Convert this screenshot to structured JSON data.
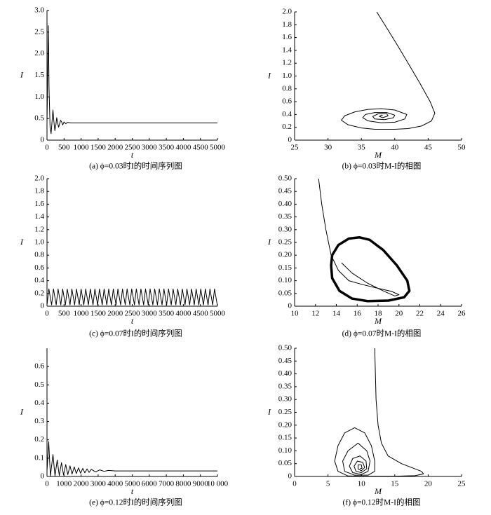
{
  "chart_data": [
    {
      "type": "line",
      "caption": "(a) ϕ=0.03时I的时间序列图",
      "xlabel": "t",
      "ylabel": "I",
      "xlim": [
        0,
        5000
      ],
      "xticks": [
        0,
        500,
        1000,
        1500,
        2000,
        2500,
        3000,
        3500,
        4000,
        4500,
        5000
      ],
      "ylim": [
        0,
        3
      ],
      "yticks": [
        0,
        0.5,
        {
          "value": 1,
          "label": "1.0"
        },
        1.5,
        {
          "value": 2,
          "label": "2.0"
        },
        2.5,
        {
          "value": 3,
          "label": "3.0"
        }
      ],
      "series": [
        {
          "color": "#000000",
          "x": [
            0,
            20,
            40,
            60,
            90,
            120,
            150,
            175,
            200,
            230,
            260,
            285,
            310,
            340,
            370,
            400,
            430,
            460,
            500,
            550,
            600,
            700,
            800,
            5000
          ],
          "values": [
            0.4,
            1.5,
            2.65,
            1.2,
            0.3,
            0.15,
            0.45,
            0.7,
            0.45,
            0.22,
            0.35,
            0.52,
            0.42,
            0.3,
            0.38,
            0.46,
            0.42,
            0.35,
            0.42,
            0.38,
            0.41,
            0.4,
            0.4,
            0.4
          ]
        }
      ]
    },
    {
      "type": "line",
      "caption": "(b) ϕ=0.03时M-I的相图",
      "xlabel": "M",
      "ylabel": "I",
      "xlim": [
        25,
        50
      ],
      "xticks": [
        25,
        30,
        35,
        40,
        45,
        50
      ],
      "ylim": [
        0,
        2
      ],
      "yticks": [
        0,
        0.2,
        0.4,
        0.6,
        0.8,
        {
          "value": 1,
          "label": "1.0"
        },
        1.2,
        1.4,
        1.6,
        1.8,
        {
          "value": 2,
          "label": "2.0"
        }
      ],
      "series": [
        {
          "color": "#000000",
          "x": [
            37.3,
            38.8,
            40.4,
            42,
            43.7,
            45.3,
            46,
            45.5,
            44,
            42,
            40,
            37,
            35,
            33,
            32,
            32.5,
            34,
            36,
            38,
            40,
            41.8,
            41.5,
            40,
            38,
            36,
            35.2,
            35.6,
            37,
            38.8,
            40,
            39.8,
            38.5,
            37,
            36.7,
            37.5,
            38.8,
            39,
            38.2,
            37.7,
            38,
            38.2
          ],
          "values": [
            2.0,
            1.75,
            1.48,
            1.2,
            0.9,
            0.6,
            0.42,
            0.3,
            0.22,
            0.18,
            0.17,
            0.17,
            0.19,
            0.24,
            0.31,
            0.38,
            0.44,
            0.48,
            0.49,
            0.47,
            0.4,
            0.33,
            0.28,
            0.27,
            0.3,
            0.35,
            0.4,
            0.43,
            0.43,
            0.39,
            0.35,
            0.32,
            0.33,
            0.37,
            0.41,
            0.41,
            0.38,
            0.35,
            0.37,
            0.39,
            0.38
          ]
        }
      ]
    },
    {
      "type": "line",
      "caption": "(c) ϕ=0.07时I的时间序列图",
      "xlabel": "t",
      "ylabel": "I",
      "xlim": [
        0,
        5000
      ],
      "xticks": [
        0,
        500,
        1000,
        1500,
        2000,
        2500,
        3000,
        3500,
        4000,
        4500,
        5000
      ],
      "ylim": [
        0,
        2
      ],
      "yticks": [
        0,
        0.2,
        0.4,
        0.6,
        0.8,
        {
          "value": 1,
          "label": "1.0"
        },
        1.2,
        1.4,
        1.6,
        1.8,
        {
          "value": 2,
          "label": "2.0"
        }
      ],
      "series": [
        {
          "color": "#000000",
          "x": [
            0,
            55,
            135,
            190,
            270,
            325,
            405,
            460,
            540,
            595,
            675,
            730,
            810,
            865,
            945,
            1000,
            1080,
            1135,
            1215,
            1270,
            1350,
            1405,
            1485,
            1540,
            1620,
            1675,
            1755,
            1810,
            1890,
            1945,
            2025,
            2080,
            2160,
            2215,
            2295,
            2350,
            2430,
            2485,
            2565,
            2620,
            2700,
            2755,
            2835,
            2890,
            2970,
            3025,
            3105,
            3160,
            3240,
            3295,
            3375,
            3430,
            3510,
            3565,
            3645,
            3700,
            3780,
            3835,
            3915,
            3970,
            4050,
            4105,
            4185,
            4240,
            4320,
            4375,
            4455,
            4510,
            4590,
            4645,
            4725,
            4780,
            4860,
            4915,
            4995
          ],
          "values": [
            0.02,
            0.27,
            0.02,
            0.27,
            0.02,
            0.27,
            0.02,
            0.27,
            0.02,
            0.27,
            0.02,
            0.27,
            0.02,
            0.27,
            0.02,
            0.27,
            0.02,
            0.27,
            0.02,
            0.27,
            0.02,
            0.27,
            0.02,
            0.27,
            0.02,
            0.27,
            0.02,
            0.27,
            0.02,
            0.27,
            0.02,
            0.27,
            0.02,
            0.27,
            0.02,
            0.27,
            0.02,
            0.27,
            0.02,
            0.27,
            0.02,
            0.27,
            0.02,
            0.27,
            0.02,
            0.27,
            0.02,
            0.27,
            0.02,
            0.27,
            0.02,
            0.27,
            0.02,
            0.27,
            0.02,
            0.27,
            0.02,
            0.27,
            0.02,
            0.27,
            0.02,
            0.27,
            0.02,
            0.27,
            0.02,
            0.27,
            0.02,
            0.27,
            0.02,
            0.27,
            0.02,
            0.27,
            0.02,
            0.27,
            0.02
          ]
        }
      ]
    },
    {
      "type": "line",
      "caption": "(d) ϕ=0.07时M-I的相图",
      "xlabel": "M",
      "ylabel": "I",
      "xlim": [
        10,
        26
      ],
      "xticks": [
        10,
        12,
        14,
        16,
        18,
        20,
        22,
        24,
        26
      ],
      "ylim": [
        0,
        0.5
      ],
      "yticks": [
        0,
        0.05,
        {
          "value": 0.1,
          "label": "0.10"
        },
        0.15,
        {
          "value": 0.2,
          "label": "0.20"
        },
        0.25,
        {
          "value": 0.3,
          "label": "0.30"
        },
        0.35,
        {
          "value": 0.4,
          "label": "0.40"
        },
        0.45,
        {
          "value": 0.5,
          "label": "0.50"
        }
      ],
      "series": [
        {
          "color": "#000000",
          "line_width": 1,
          "x": [
            12.3,
            12.6,
            13,
            13.5,
            14.2,
            15.2,
            16.5,
            18,
            19.3,
            20,
            19.6,
            18.5,
            17,
            15.5,
            14.5
          ],
          "values": [
            0.5,
            0.4,
            0.3,
            0.2,
            0.14,
            0.1,
            0.085,
            0.07,
            0.058,
            0.045,
            0.04,
            0.06,
            0.09,
            0.13,
            0.17
          ]
        },
        {
          "color": "#000000",
          "line_width": 3.5,
          "x": [
            13.6,
            14.2,
            15.2,
            16.2,
            17.2,
            18.5,
            19.8,
            20.8,
            21,
            20.5,
            19,
            17,
            15.5,
            14.3,
            13.6,
            13.5,
            13.6
          ],
          "values": [
            0.2,
            0.24,
            0.265,
            0.27,
            0.26,
            0.22,
            0.16,
            0.1,
            0.06,
            0.035,
            0.022,
            0.02,
            0.03,
            0.06,
            0.11,
            0.16,
            0.2
          ]
        }
      ]
    },
    {
      "type": "line",
      "caption": "(e) ϕ=0.12时I的时间序列图",
      "xlabel": "t",
      "ylabel": "I",
      "xlim": [
        0,
        10000
      ],
      "xticks": [
        0,
        1000,
        2000,
        3000,
        4000,
        5000,
        6000,
        7000,
        8000,
        9000,
        {
          "value": 10000,
          "label": "10 000"
        }
      ],
      "ylim": [
        0,
        0.7
      ],
      "yticks": [
        0,
        0.1,
        0.2,
        0.3,
        0.4,
        0.5,
        0.6
      ],
      "series": [
        {
          "color": "#000000",
          "x": [
            0,
            100,
            200,
            350,
            470,
            600,
            720,
            850,
            970,
            1100,
            1220,
            1350,
            1470,
            1600,
            1720,
            1850,
            1970,
            2100,
            2220,
            2350,
            2470,
            2600,
            2850,
            3100,
            3350,
            3600,
            4000,
            10000
          ],
          "values": [
            0.03,
            0.19,
            0.002,
            0.12,
            0.003,
            0.09,
            0.005,
            0.075,
            0.008,
            0.065,
            0.01,
            0.058,
            0.013,
            0.052,
            0.016,
            0.047,
            0.018,
            0.044,
            0.02,
            0.041,
            0.022,
            0.039,
            0.025,
            0.036,
            0.028,
            0.033,
            0.03,
            0.03
          ]
        }
      ]
    },
    {
      "type": "line",
      "caption": "(f) ϕ=0.12时M-I的相图",
      "xlabel": "M",
      "ylabel": "I",
      "xlim": [
        0,
        25
      ],
      "xticks": [
        0,
        5,
        10,
        15,
        20,
        25
      ],
      "ylim": [
        0,
        0.5
      ],
      "yticks": [
        0,
        0.05,
        {
          "value": 0.1,
          "label": "0.10"
        },
        0.15,
        {
          "value": 0.2,
          "label": "0.20"
        },
        0.25,
        {
          "value": 0.3,
          "label": "0.30"
        },
        0.35,
        {
          "value": 0.4,
          "label": "0.40"
        },
        0.45,
        {
          "value": 0.5,
          "label": "0.50"
        }
      ],
      "series": [
        {
          "color": "#000000",
          "x": [
            12,
            12.2,
            12.5,
            13,
            14,
            16,
            19,
            19.3,
            18,
            15,
            11,
            8,
            6.5,
            6,
            6.5,
            7.5,
            9,
            10.5,
            11.5,
            12,
            12,
            11,
            9,
            7.5,
            7.2,
            8,
            9.5,
            10.8,
            11.3,
            11,
            10,
            8.7,
            8.2,
            8.7,
            9.8,
            10.7,
            10.8,
            10,
            9.2,
            8.9,
            9.4,
            10.2,
            10.5,
            10,
            9.5,
            9.5,
            10,
            10.1,
            9.8
          ],
          "values": [
            0.5,
            0.3,
            0.2,
            0.13,
            0.08,
            0.05,
            0.02,
            0.01,
            0.003,
            0.001,
            0.001,
            0.002,
            0.02,
            0.06,
            0.12,
            0.17,
            0.19,
            0.17,
            0.12,
            0.06,
            0.02,
            0.005,
            0.005,
            0.02,
            0.06,
            0.1,
            0.13,
            0.1,
            0.06,
            0.02,
            0.008,
            0.015,
            0.04,
            0.07,
            0.08,
            0.06,
            0.03,
            0.015,
            0.02,
            0.04,
            0.06,
            0.055,
            0.035,
            0.022,
            0.03,
            0.045,
            0.045,
            0.032,
            0.03
          ]
        }
      ]
    }
  ]
}
